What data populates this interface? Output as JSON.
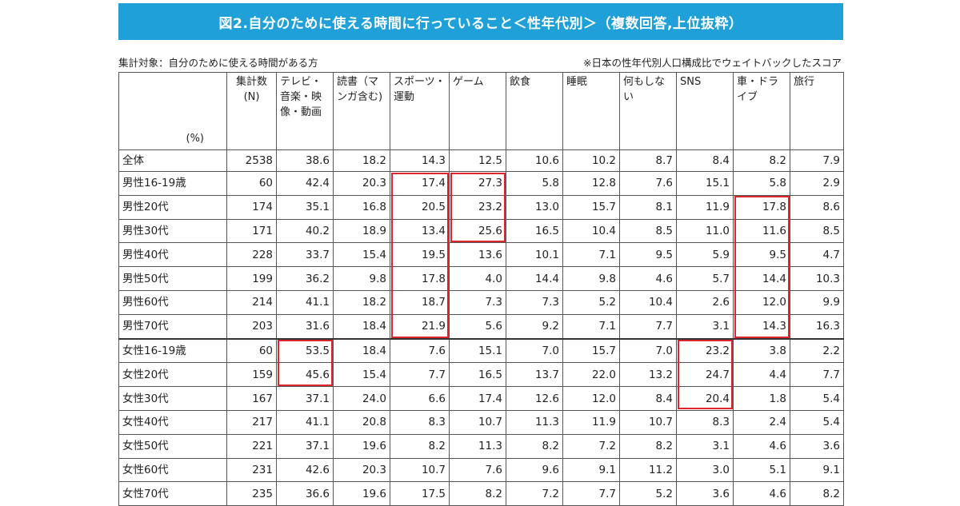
{
  "title": "図2.自分のために使える時間に行っていること＜性年代別＞（複数回答,上位抜粋）",
  "target_note": "集計対象：自分のために使える時間がある方",
  "weight_note": "※日本の性年代別人口構成比でウェイトバックしたスコア",
  "unit_label": "(%)",
  "colors": {
    "title_bg": "#1fa0d8",
    "highlight": "#e0242b"
  },
  "chart_data": {
    "type": "table",
    "columns": [
      "集計数(N)",
      "テレビ・音楽・映像・動画",
      "読書（マンガ含む)",
      "スポーツ・運動",
      "ゲーム",
      "飲食",
      "睡眠",
      "何もしない",
      "SNS",
      "車・ドライブ",
      "旅行"
    ],
    "rows": [
      {
        "label": "全体",
        "values": [
          "2538",
          "38.6",
          "18.2",
          "14.3",
          "12.5",
          "10.6",
          "10.2",
          "8.7",
          "8.4",
          "8.2",
          "7.9"
        ]
      },
      {
        "label": "男性16-19歳",
        "values": [
          "60",
          "42.4",
          "20.3",
          "17.4",
          "27.3",
          "5.8",
          "12.8",
          "7.6",
          "15.1",
          "5.8",
          "2.9"
        ]
      },
      {
        "label": "男性20代",
        "values": [
          "174",
          "35.1",
          "16.8",
          "20.5",
          "23.2",
          "13.0",
          "15.7",
          "8.1",
          "11.9",
          "17.8",
          "8.6"
        ]
      },
      {
        "label": "男性30代",
        "values": [
          "171",
          "40.2",
          "18.9",
          "13.4",
          "25.6",
          "16.5",
          "10.4",
          "8.5",
          "11.0",
          "11.6",
          "8.5"
        ]
      },
      {
        "label": "男性40代",
        "values": [
          "228",
          "33.7",
          "15.4",
          "19.5",
          "13.6",
          "10.1",
          "7.1",
          "9.5",
          "5.9",
          "9.5",
          "4.7"
        ]
      },
      {
        "label": "男性50代",
        "values": [
          "199",
          "36.2",
          "9.8",
          "17.8",
          "4.0",
          "14.4",
          "9.8",
          "4.6",
          "5.7",
          "14.4",
          "10.3"
        ]
      },
      {
        "label": "男性60代",
        "values": [
          "214",
          "41.1",
          "18.2",
          "18.7",
          "7.3",
          "7.3",
          "5.2",
          "10.4",
          "2.6",
          "12.0",
          "9.9"
        ]
      },
      {
        "label": "男性70代",
        "values": [
          "203",
          "31.6",
          "18.4",
          "21.9",
          "5.6",
          "9.2",
          "7.1",
          "7.7",
          "3.1",
          "14.3",
          "16.3"
        ]
      },
      {
        "label": "女性16-19歳",
        "values": [
          "60",
          "53.5",
          "18.4",
          "7.6",
          "15.1",
          "7.0",
          "15.7",
          "7.0",
          "23.2",
          "3.8",
          "2.2"
        ]
      },
      {
        "label": "女性20代",
        "values": [
          "159",
          "45.6",
          "15.4",
          "7.7",
          "16.5",
          "13.7",
          "22.0",
          "13.2",
          "24.7",
          "4.4",
          "7.7"
        ]
      },
      {
        "label": "女性30代",
        "values": [
          "167",
          "37.1",
          "24.0",
          "6.6",
          "17.4",
          "12.6",
          "12.0",
          "8.4",
          "20.4",
          "1.8",
          "5.4"
        ]
      },
      {
        "label": "女性40代",
        "values": [
          "217",
          "41.1",
          "20.8",
          "8.3",
          "10.7",
          "11.3",
          "11.9",
          "10.7",
          "8.3",
          "2.4",
          "5.4"
        ]
      },
      {
        "label": "女性50代",
        "values": [
          "221",
          "37.1",
          "19.6",
          "8.2",
          "11.3",
          "8.2",
          "7.2",
          "8.2",
          "3.1",
          "4.6",
          "3.6"
        ]
      },
      {
        "label": "女性60代",
        "values": [
          "231",
          "42.6",
          "20.3",
          "10.7",
          "7.6",
          "9.6",
          "9.1",
          "11.2",
          "3.0",
          "5.1",
          "9.1"
        ]
      },
      {
        "label": "女性70代",
        "values": [
          "235",
          "36.6",
          "19.6",
          "17.5",
          "8.2",
          "7.2",
          "7.7",
          "5.2",
          "3.6",
          "4.6",
          "8.2"
        ]
      }
    ],
    "highlights": [
      {
        "column": 3,
        "from_row": 1,
        "to_row": 7
      },
      {
        "column": 4,
        "from_row": 1,
        "to_row": 3
      },
      {
        "column": 9,
        "from_row": 2,
        "to_row": 7
      },
      {
        "column": 1,
        "from_row": 8,
        "to_row": 9
      },
      {
        "column": 8,
        "from_row": 8,
        "to_row": 10
      }
    ]
  }
}
